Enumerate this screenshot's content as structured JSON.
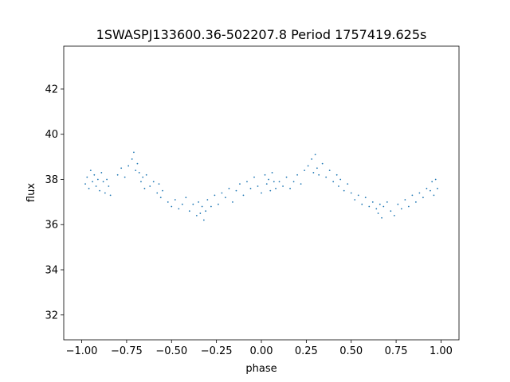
{
  "chart_data": {
    "type": "scatter",
    "title": "1SWASPJ133600.36-502207.8 Period 1757419.625s",
    "xlabel": "phase",
    "ylabel": "flux",
    "xlim": [
      -1.1,
      1.1
    ],
    "ylim": [
      30.9,
      43.9
    ],
    "xticks": [
      -1.0,
      -0.75,
      -0.5,
      -0.25,
      0.0,
      0.25,
      0.5,
      0.75,
      1.0
    ],
    "xtick_labels": [
      "−1.00",
      "−0.75",
      "−0.50",
      "−0.25",
      "0.00",
      "0.25",
      "0.50",
      "0.75",
      "1.00"
    ],
    "yticks": [
      32,
      34,
      36,
      38,
      40,
      42
    ],
    "ytick_labels": [
      "32",
      "34",
      "36",
      "38",
      "40",
      "42"
    ],
    "grid": false,
    "legend": "none",
    "marker_color": "#1f77b4",
    "series": [
      {
        "x": [
          -0.98,
          -0.97,
          -0.96,
          -0.95,
          -0.94,
          -0.93,
          -0.92,
          -0.91,
          -0.9,
          -0.89,
          -0.88,
          -0.87,
          -0.86,
          -0.85,
          -0.84,
          -0.8,
          -0.78,
          -0.76,
          -0.74,
          -0.72,
          -0.71,
          -0.7,
          -0.69,
          -0.68,
          -0.67,
          -0.66,
          -0.65,
          -0.64,
          -0.62,
          -0.6,
          -0.58,
          -0.57,
          -0.56,
          -0.55,
          -0.52,
          -0.5,
          -0.48,
          -0.46,
          -0.44,
          -0.42,
          -0.4,
          -0.38,
          -0.36,
          -0.35,
          -0.34,
          -0.33,
          -0.32,
          -0.31,
          -0.3,
          -0.28,
          -0.26,
          -0.24,
          -0.22,
          -0.2,
          -0.18,
          -0.16,
          -0.14,
          -0.12,
          -0.1,
          -0.08,
          -0.06,
          -0.04,
          -0.02,
          0.0,
          0.02,
          0.03,
          0.04,
          0.05,
          0.06,
          0.07,
          0.08,
          0.1,
          0.12,
          0.14,
          0.16,
          0.18,
          0.2,
          0.22,
          0.24,
          0.26,
          0.28,
          0.29,
          0.3,
          0.31,
          0.32,
          0.34,
          0.36,
          0.38,
          0.4,
          0.42,
          0.43,
          0.44,
          0.46,
          0.48,
          0.5,
          0.52,
          0.54,
          0.56,
          0.58,
          0.6,
          0.62,
          0.64,
          0.65,
          0.66,
          0.67,
          0.68,
          0.7,
          0.72,
          0.74,
          0.76,
          0.78,
          0.8,
          0.82,
          0.84,
          0.86,
          0.88,
          0.9,
          0.92,
          0.94,
          0.95,
          0.96,
          0.97,
          0.98
        ],
        "y": [
          37.8,
          38.1,
          37.6,
          38.4,
          37.9,
          38.2,
          37.7,
          38.0,
          37.5,
          38.3,
          37.9,
          37.4,
          38.0,
          37.7,
          37.3,
          38.2,
          38.5,
          38.1,
          38.6,
          38.9,
          39.2,
          38.4,
          38.7,
          38.3,
          37.9,
          38.1,
          37.6,
          38.2,
          37.7,
          37.9,
          37.4,
          37.8,
          37.2,
          37.5,
          37.0,
          36.8,
          37.1,
          36.7,
          36.9,
          37.2,
          36.6,
          36.9,
          36.4,
          37.0,
          36.5,
          36.8,
          36.2,
          36.6,
          37.1,
          36.8,
          37.3,
          36.9,
          37.4,
          37.2,
          37.6,
          37.0,
          37.5,
          37.8,
          37.3,
          37.9,
          37.6,
          38.1,
          37.7,
          37.4,
          38.2,
          37.8,
          38.0,
          37.5,
          38.3,
          37.9,
          37.6,
          37.9,
          37.7,
          38.1,
          37.6,
          37.9,
          38.2,
          37.8,
          38.4,
          38.6,
          38.9,
          38.3,
          39.1,
          38.5,
          38.2,
          38.7,
          38.1,
          38.4,
          37.9,
          38.2,
          37.7,
          38.0,
          37.5,
          37.8,
          37.4,
          37.1,
          37.3,
          36.9,
          37.2,
          36.8,
          37.0,
          36.7,
          36.5,
          36.9,
          36.3,
          36.8,
          37.0,
          36.6,
          36.4,
          36.9,
          36.7,
          37.1,
          36.8,
          37.3,
          37.0,
          37.4,
          37.2,
          37.6,
          37.5,
          37.9,
          37.3,
          38.0,
          37.6
        ]
      }
    ]
  }
}
